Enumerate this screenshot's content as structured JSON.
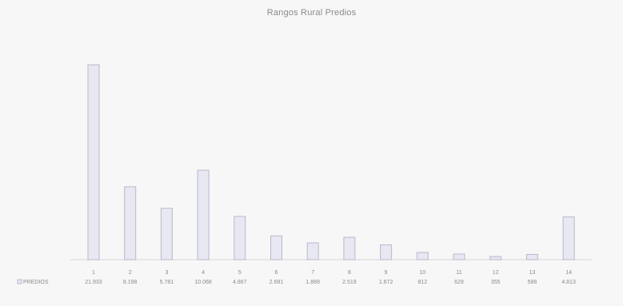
{
  "chart_data": {
    "type": "bar",
    "title": "Rangos Rural Predios",
    "xlabel": "",
    "ylabel": "",
    "series": [
      {
        "name": "PREDIOS",
        "values": [
          21933,
          8198,
          5781,
          10068,
          4867,
          2681,
          1889,
          2519,
          1672,
          812,
          628,
          355,
          588,
          4813
        ]
      }
    ],
    "categories": [
      "1",
      "2",
      "3",
      "4",
      "5",
      "6",
      "7",
      "8",
      "9",
      "10",
      "11",
      "12",
      "13",
      "14"
    ],
    "value_labels": [
      "21.933",
      "8.198",
      "5.781",
      "10.068",
      "4.867",
      "2.681",
      "1.889",
      "2.519",
      "1.672",
      "812",
      "628",
      "355",
      "588",
      "4.813"
    ],
    "ylim": [
      0,
      25000
    ],
    "grid": false,
    "legend": "bottom-left",
    "colors": {
      "bar_fill": "#e8e8f2",
      "bar_edge": "#b8b8cc",
      "text": "#8a8a8a",
      "background": "#f7f7f7"
    }
  }
}
